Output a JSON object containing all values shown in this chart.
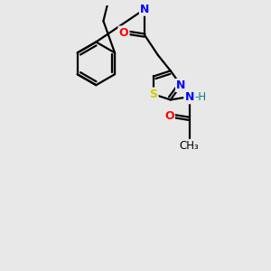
{
  "background_color": "#e8e8e8",
  "bond_color": "#000000",
  "N_color": "#0000ff",
  "O_color": "#ff0000",
  "S_color": "#cccc00",
  "H_color": "#008080",
  "line_width": 1.6,
  "figsize": [
    3.0,
    3.0
  ],
  "dpi": 100,
  "xlim": [
    0,
    10
  ],
  "ylim": [
    0,
    10
  ]
}
